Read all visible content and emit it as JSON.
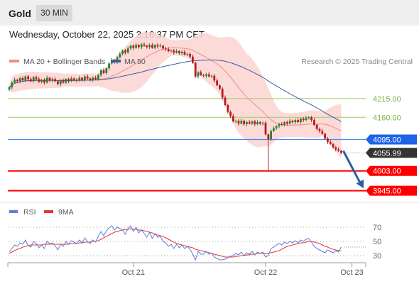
{
  "header": {
    "symbol": "Gold",
    "timeframe": "30 MIN",
    "datetime": "Wednesday, October 22, 2025 3:16:37 PM CET"
  },
  "colors": {
    "candle_up": "#2e7d32",
    "candle_down": "#b71c1c",
    "ma20": "#f28b82",
    "bollinger_band": "#fcd4d1",
    "ma50": "#3a5ba0",
    "support": "#ff0000",
    "pivot": "#4f86f7",
    "resistance": "#9ccc65",
    "arrow": "#2f5f9e",
    "rsi": "#5b7fd6",
    "rsi_ma": "#e53935"
  },
  "chart_data": [
    {
      "type": "candlestick",
      "legend": [
        {
          "label": "MA 20 + Bollinger Bands",
          "color": "#f28b82"
        },
        {
          "label": "MA 50",
          "color": "#3a5ba0"
        }
      ],
      "copyright": "Research © 2025 Trading Central",
      "ylim": [
        3915,
        4375
      ],
      "x_ticks": [
        {
          "label": "Oct 21",
          "index": 46
        },
        {
          "label": "Oct 22",
          "index": 95
        },
        {
          "label": "Oct 23",
          "index": 127
        }
      ],
      "closes": [
        4248,
        4262,
        4270,
        4266,
        4275,
        4268,
        4280,
        4272,
        4266,
        4278,
        4272,
        4264,
        4270,
        4262,
        4276,
        4268,
        4272,
        4266,
        4258,
        4268,
        4262,
        4272,
        4266,
        4274,
        4270,
        4268,
        4276,
        4270,
        4280,
        4274,
        4270,
        4276,
        4272,
        4284,
        4298,
        4290,
        4304,
        4318,
        4328,
        4322,
        4336,
        4346,
        4356,
        4350,
        4362,
        4370,
        4364,
        4372,
        4366,
        4374,
        4370,
        4366,
        4372,
        4364,
        4372,
        4368,
        4370,
        4362,
        4360,
        4354,
        4356,
        4350,
        4354,
        4348,
        4352,
        4344,
        4346,
        4338,
        4320,
        4280,
        4292,
        4284,
        4282,
        4286,
        4280,
        4282,
        4268,
        4254,
        4244,
        4218,
        4196,
        4176,
        4164,
        4148,
        4150,
        4142,
        4150,
        4140,
        4146,
        4142,
        4148,
        4140,
        4146,
        4142,
        4144,
        4110,
        4096,
        4120,
        4128,
        4134,
        4140,
        4138,
        4146,
        4142,
        4150,
        4146,
        4152,
        4146,
        4156,
        4152,
        4158,
        4160,
        4152,
        4138,
        4126,
        4120,
        4112,
        4098,
        4088,
        4082,
        4072,
        4066,
        4062,
        4056
      ],
      "lows": [
        {
          "index": 96,
          "value": 4004
        }
      ],
      "levels": [
        {
          "value": 4215.0,
          "label": "4215.00",
          "kind": "resistance"
        },
        {
          "value": 4160.0,
          "label": "4160.00",
          "kind": "resistance"
        },
        {
          "value": 4095.0,
          "label": "4095.00",
          "kind": "pivot"
        },
        {
          "value": 4003.0,
          "label": "4003.00",
          "kind": "support"
        },
        {
          "value": 3945.0,
          "label": "3945.00",
          "kind": "support"
        }
      ],
      "last_price": {
        "value": 4055.99,
        "label": "4055.99"
      },
      "forecast_arrow": {
        "from": 4062,
        "to": 3952
      }
    },
    {
      "type": "line",
      "legend": [
        {
          "label": "RSI",
          "color": "#5b7fd6"
        },
        {
          "label": "9MA",
          "color": "#e53935"
        }
      ],
      "ylim": [
        20,
        80
      ],
      "y_ticks": [
        70,
        50,
        30
      ],
      "rsi": [
        35,
        40,
        45,
        43,
        48,
        46,
        52,
        44,
        42,
        50,
        47,
        41,
        45,
        40,
        50,
        47,
        48,
        44,
        38,
        46,
        43,
        50,
        46,
        51,
        49,
        47,
        52,
        48,
        55,
        50,
        47,
        52,
        49,
        57,
        64,
        58,
        65,
        69,
        72,
        66,
        70,
        68,
        66,
        60,
        68,
        72,
        64,
        70,
        62,
        66,
        61,
        56,
        63,
        54,
        61,
        56,
        57,
        50,
        48,
        43,
        46,
        40,
        46,
        41,
        45,
        40,
        43,
        39,
        32,
        24,
        36,
        32,
        32,
        36,
        32,
        34,
        28,
        26,
        24,
        24,
        25,
        27,
        29,
        30,
        33,
        31,
        35,
        30,
        34,
        32,
        36,
        31,
        35,
        33,
        35,
        28,
        30,
        40,
        42,
        45,
        47,
        45,
        49,
        47,
        50,
        48,
        51,
        48,
        52,
        50,
        53,
        54,
        49,
        43,
        40,
        38,
        36,
        34,
        38,
        36,
        34,
        37,
        35,
        42
      ],
      "ma9": [
        33,
        35,
        37,
        39,
        40,
        42,
        43,
        44,
        45,
        45,
        45,
        45,
        45,
        46,
        46,
        46,
        46,
        46,
        46,
        46,
        46,
        46,
        46,
        47,
        47,
        47,
        48,
        48,
        49,
        49,
        49,
        50,
        50,
        51,
        53,
        55,
        57,
        59,
        61,
        63,
        64,
        65,
        66,
        67,
        67,
        68,
        67,
        67,
        66,
        66,
        65,
        64,
        63,
        62,
        60,
        59,
        58,
        57,
        55,
        53,
        51,
        49,
        47,
        46,
        45,
        44,
        43,
        42,
        41,
        39,
        38,
        37,
        36,
        35,
        34,
        33,
        32,
        31,
        30,
        29,
        28,
        28,
        28,
        28,
        29,
        29,
        30,
        30,
        31,
        31,
        32,
        32,
        33,
        33,
        33,
        33,
        33,
        34,
        35,
        36,
        37,
        39,
        41,
        43,
        44,
        45,
        46,
        47,
        48,
        48,
        49,
        50,
        50,
        49,
        48,
        47,
        45,
        43,
        42,
        40,
        39,
        38,
        37,
        37
      ]
    }
  ]
}
